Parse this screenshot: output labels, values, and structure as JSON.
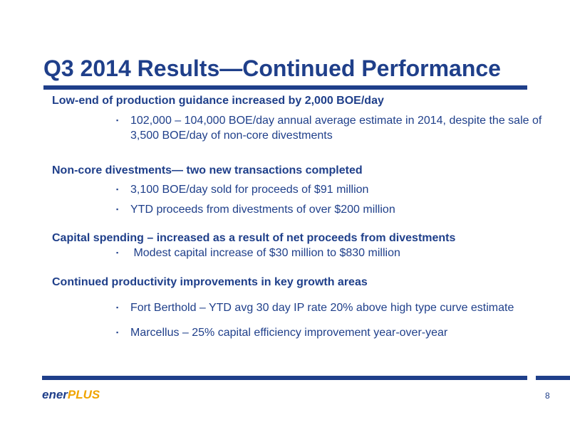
{
  "title": "Q3 2014 Results—Continued Performance",
  "sections": [
    {
      "heading": "Low-end of production guidance increased by 2,000 BOE/day",
      "bullets": [
        "102,000 – 104,000 BOE/day annual average estimate in 2014, despite the sale of 3,500 BOE/day of non-core divestments"
      ]
    },
    {
      "heading": "Non-core divestments— two new transactions completed",
      "bullets": [
        "3,100 BOE/day sold for proceeds of $91 million",
        "YTD proceeds from divestments of over $200 million"
      ]
    },
    {
      "heading": "Capital spending – increased as a result of net proceeds from divestments",
      "bullets": [
        " Modest capital increase of $30 million to $830 million"
      ]
    },
    {
      "heading": "Continued productivity improvements in key growth areas",
      "bullets": [
        "Fort Berthold – YTD avg 30 day IP rate 20% above high type curve estimate",
        "Marcellus – 25% capital efficiency improvement year-over-year"
      ]
    }
  ],
  "bullet_mark": "▪",
  "logo": {
    "part1": "ener",
    "part2": "PLUS"
  },
  "page_number": "8",
  "colors": {
    "text": "#1f3f8a",
    "logo_accent": "#f0a400"
  }
}
